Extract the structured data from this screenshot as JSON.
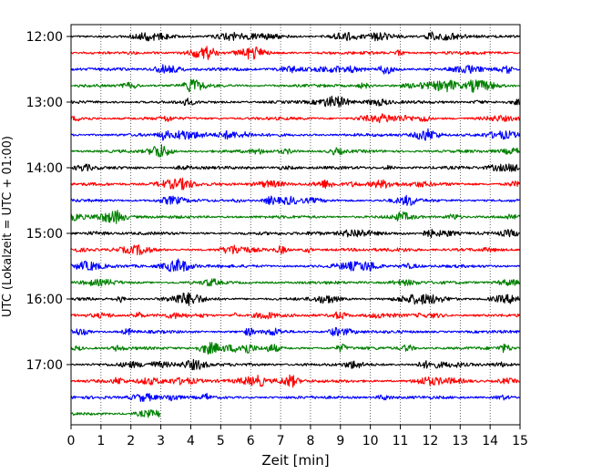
{
  "chart_data": {
    "type": "line",
    "title": "",
    "xlabel": "Zeit  [min]",
    "ylabel": "UTC (Lokalzeit = UTC + 01:00)",
    "xlim": [
      0,
      15
    ],
    "x_ticks": [
      0,
      1,
      2,
      3,
      4,
      5,
      6,
      7,
      8,
      9,
      10,
      11,
      12,
      13,
      14,
      15
    ],
    "x_tick_labels": [
      "0",
      "1",
      "2",
      "3",
      "4",
      "5",
      "6",
      "7",
      "8",
      "9",
      "10",
      "11",
      "12",
      "13",
      "14",
      "15"
    ],
    "y_tick_labels": [
      "12:00",
      "13:00",
      "14:00",
      "15:00",
      "16:00",
      "17:00"
    ],
    "grid": "vertical dotted",
    "trace_colors": [
      "#000000",
      "#ff0000",
      "#0000ff",
      "#008000"
    ],
    "traces": [
      {
        "start": "12:00"
      },
      {
        "start": "12:15"
      },
      {
        "start": "12:30"
      },
      {
        "start": "12:45"
      },
      {
        "start": "13:00"
      },
      {
        "start": "13:15"
      },
      {
        "start": "13:30"
      },
      {
        "start": "13:45"
      },
      {
        "start": "14:00"
      },
      {
        "start": "14:15"
      },
      {
        "start": "14:30"
      },
      {
        "start": "14:45"
      },
      {
        "start": "15:00"
      },
      {
        "start": "15:15"
      },
      {
        "start": "15:30"
      },
      {
        "start": "15:45"
      },
      {
        "start": "16:00"
      },
      {
        "start": "16:15"
      },
      {
        "start": "16:30"
      },
      {
        "start": "16:45"
      },
      {
        "start": "17:00"
      },
      {
        "start": "17:15"
      },
      {
        "start": "17:30"
      },
      {
        "start": "17:45",
        "end_min": 3.0
      }
    ]
  }
}
